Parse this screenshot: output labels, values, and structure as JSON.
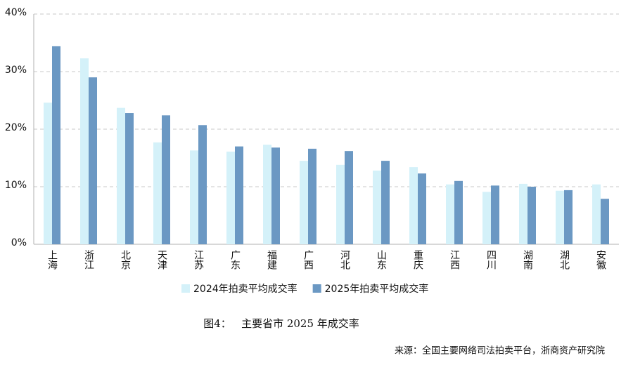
{
  "chart_data": {
    "type": "bar",
    "categories": [
      "上海",
      "浙江",
      "北京",
      "天津",
      "江苏",
      "广东",
      "福建",
      "广西",
      "河北",
      "山东",
      "重庆",
      "江西",
      "四川",
      "湖南",
      "湖北",
      "安徽"
    ],
    "series": [
      {
        "name": "2024年拍卖平均成交率",
        "color": "#d4f1f9",
        "values": [
          24.6,
          32.3,
          23.7,
          17.7,
          16.3,
          16.1,
          17.3,
          14.5,
          13.8,
          12.8,
          13.4,
          10.4,
          9.1,
          10.5,
          9.3,
          10.4
        ]
      },
      {
        "name": "2025年拍卖平均成交率",
        "color": "#6b98c3",
        "values": [
          34.4,
          29.0,
          22.8,
          22.4,
          20.7,
          17.0,
          16.8,
          16.6,
          16.2,
          14.5,
          12.3,
          11.0,
          10.2,
          10.0,
          9.4,
          7.9
        ]
      }
    ],
    "ylim": [
      0,
      40
    ],
    "yticks": [
      {
        "value": 0,
        "label": "0%"
      },
      {
        "value": 10,
        "label": "10%"
      },
      {
        "value": 20,
        "label": "20%"
      },
      {
        "value": 30,
        "label": "30%"
      },
      {
        "value": 40,
        "label": "40%"
      }
    ],
    "grid": true,
    "legend": "bottom",
    "caption": "图4：   主要省市 2025 年成交率",
    "source": "来源：全国主要网络司法拍卖平台，浙商资产研究院"
  }
}
